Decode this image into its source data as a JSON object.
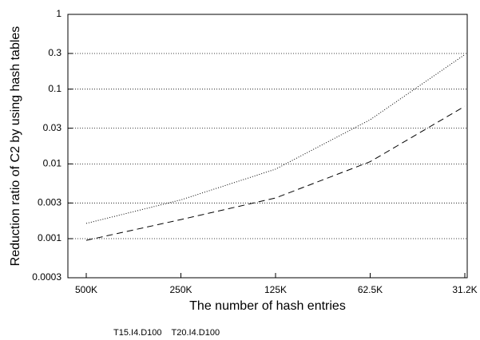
{
  "chart_data": {
    "type": "line",
    "y_label": "Reduction ratio of C2 by using hash tables",
    "x_label": "The number of hash entries",
    "categories": [
      "500K",
      "250K",
      "125K",
      "62.5K",
      "31.2K"
    ],
    "series": [
      {
        "name": "T15.I4.D100",
        "color": "#000000",
        "dash": "8,5",
        "values": [
          0.00095,
          0.0018,
          0.0035,
          0.0107,
          0.059
        ]
      },
      {
        "name": "T20.I4.D100",
        "color": "#000000",
        "dash": "1,2",
        "values": [
          0.0016,
          0.0033,
          0.0085,
          0.039,
          0.29
        ]
      }
    ],
    "ylim": [
      0.0003,
      1
    ],
    "yticks": [
      1,
      0.3,
      0.1,
      0.03,
      0.01,
      0.003,
      0.001,
      0.0003
    ],
    "log_y": true,
    "grid": true,
    "legend": "bottom"
  }
}
